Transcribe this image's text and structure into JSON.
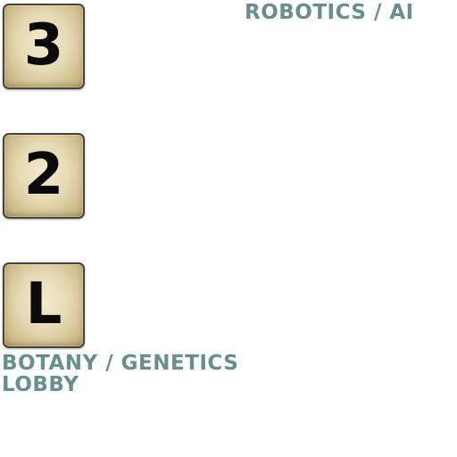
{
  "colors": {
    "label_text": "#6a8e8e",
    "button_face": "#e6d9b4",
    "button_border": "#4a4232",
    "button_glyph": "#0a0a0a"
  },
  "floors": [
    {
      "button_text": "3",
      "label": "ROBOTICS / AI"
    },
    {
      "button_text": "2",
      "label": "BOTANY / GENETICS"
    },
    {
      "button_text": "L",
      "label": "LOBBY"
    }
  ]
}
